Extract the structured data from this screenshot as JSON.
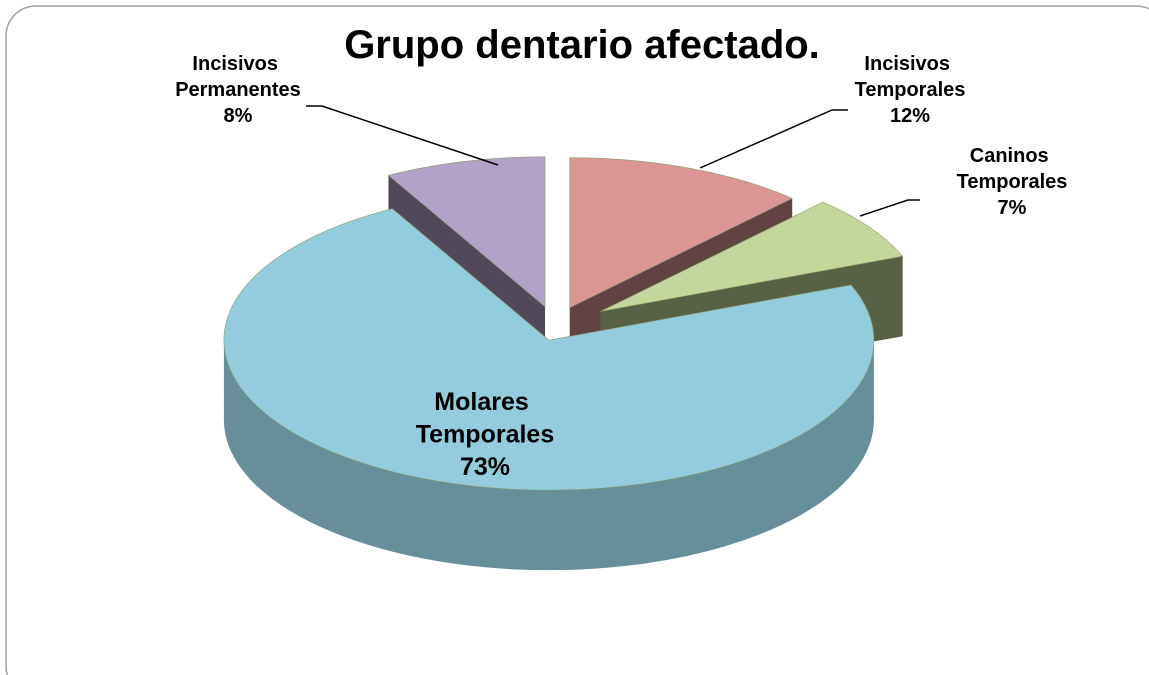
{
  "chart_data": {
    "type": "pie",
    "title": "Grupo dentario afectado.",
    "categories": [
      "Incisivos Temporales",
      "Caninos Temporales",
      "Molares Temporales",
      "Incisivos Permanentes"
    ],
    "values": [
      12,
      7,
      73,
      8
    ],
    "value_labels": [
      "12%",
      "7%",
      "73%",
      "8%"
    ],
    "colors": [
      "#d99694",
      "#c3d69b",
      "#93cddd",
      "#b3a2c7"
    ]
  }
}
